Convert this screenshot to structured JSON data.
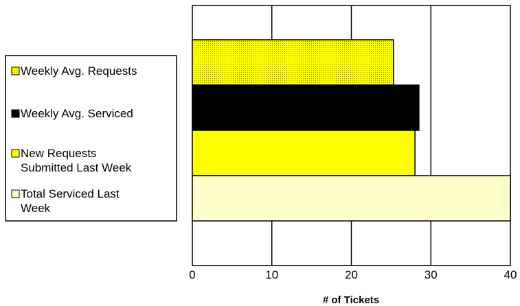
{
  "chart_data": {
    "type": "bar",
    "orientation": "horizontal",
    "title": "",
    "xlabel": "# of Tickets",
    "ylabel": "",
    "xlim": [
      0,
      40
    ],
    "xticks": [
      0,
      10,
      20,
      30,
      40
    ],
    "grid": "vertical",
    "legend_position": "left",
    "series": [
      {
        "label_lines": [
          "Weekly Avg. Requests"
        ],
        "value": 25.3,
        "color": "#ffff00",
        "pattern": "dotted"
      },
      {
        "label_lines": [
          "Weekly Avg. Serviced"
        ],
        "value": 28.5,
        "color": "#000000",
        "pattern": "solid"
      },
      {
        "label_lines": [
          "New Requests",
          "Submitted Last Week"
        ],
        "value": 28,
        "color": "#ffff00",
        "pattern": "solid"
      },
      {
        "label_lines": [
          "Total Serviced Last",
          "Week"
        ],
        "value": 40,
        "color": "#ffffcc",
        "pattern": "solid"
      }
    ]
  }
}
